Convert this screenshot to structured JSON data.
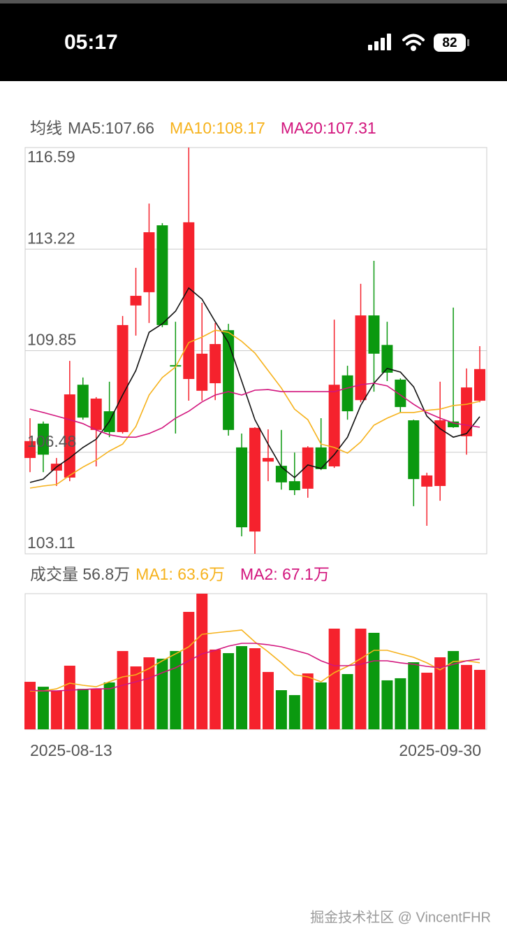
{
  "status_bar": {
    "time": "05:17",
    "battery": "82"
  },
  "chart_data": [
    {
      "type": "candlestick",
      "title": "均线",
      "open": [
        106.29,
        107.43,
        105.87,
        105.64,
        108.72,
        107.22,
        107.84,
        107.15,
        111.35,
        111.79,
        114.01,
        109.37,
        108.91,
        108.52,
        108.77,
        110.53,
        106.64,
        103.85,
        106.17,
        106.03,
        105.52,
        105.27,
        106.64,
        106.01,
        109.03,
        108.21,
        111.02,
        110.04,
        108.89,
        107.54,
        105.34,
        105.36,
        107.5,
        107.01,
        108.19
      ],
      "high": [
        107.61,
        107.5,
        106.29,
        109.51,
        108.96,
        108.31,
        108.82,
        111.0,
        112.6,
        114.73,
        114.08,
        110.81,
        116.59,
        111.44,
        110.77,
        110.74,
        107.1,
        107.31,
        107.24,
        107.22,
        106.47,
        106.68,
        107.61,
        110.88,
        109.35,
        112.07,
        112.83,
        110.81,
        108.93,
        107.56,
        105.8,
        108.82,
        111.28,
        109.26,
        110.0
      ],
      "low": [
        105.82,
        105.82,
        105.36,
        105.52,
        107.56,
        106.01,
        106.98,
        107.1,
        110.35,
        110.77,
        110.63,
        107.1,
        108.19,
        108.19,
        108.21,
        107.03,
        103.69,
        103.11,
        105.52,
        105.24,
        105.06,
        104.97,
        105.89,
        105.96,
        107.56,
        108.14,
        108.49,
        108.84,
        107.8,
        104.69,
        104.04,
        104.87,
        107.29,
        106.4,
        108.14
      ],
      "close": [
        106.85,
        106.4,
        106.1,
        108.4,
        107.63,
        108.26,
        107.15,
        110.7,
        111.67,
        113.78,
        110.7,
        109.33,
        114.11,
        109.75,
        110.07,
        107.22,
        103.99,
        107.29,
        106.29,
        105.48,
        105.22,
        106.64,
        105.92,
        108.72,
        107.84,
        111.02,
        109.75,
        109.12,
        107.98,
        105.59,
        105.71,
        107.54,
        107.31,
        108.63,
        109.24
      ],
      "up_color": "#f5222d",
      "down_color": "#0b990f",
      "series": [
        {
          "name": "MA5:107.66",
          "color": "#111111",
          "values": [
            105.48,
            105.59,
            105.99,
            106.29,
            106.64,
            106.91,
            107.5,
            108.38,
            109.19,
            110.46,
            110.74,
            111.16,
            111.93,
            111.56,
            110.81,
            110.12,
            108.84,
            107.56,
            106.75,
            105.99,
            105.64,
            106.06,
            105.94,
            106.4,
            106.98,
            108.03,
            108.77,
            109.26,
            109.14,
            108.65,
            107.68,
            107.26,
            106.98,
            107.1,
            107.66
          ]
        },
        {
          "name": "MA10:108.17",
          "color": "#f6b21c",
          "values": [
            105.29,
            105.36,
            105.41,
            105.71,
            105.99,
            106.22,
            106.52,
            106.75,
            107.33,
            108.38,
            108.96,
            109.31,
            110.12,
            110.3,
            110.53,
            110.46,
            110.16,
            109.77,
            109.19,
            108.61,
            107.91,
            107.56,
            106.75,
            106.64,
            106.45,
            106.82,
            107.38,
            107.61,
            107.8,
            107.8,
            107.87,
            107.91,
            108.03,
            108.07,
            108.17
          ]
        },
        {
          "name": "MA20:107.31",
          "color": "#d2157d",
          "values": [
            107.91,
            107.8,
            107.68,
            107.56,
            107.43,
            107.22,
            107.06,
            106.98,
            106.98,
            107.1,
            107.29,
            107.61,
            107.84,
            108.15,
            108.38,
            108.49,
            108.38,
            108.54,
            108.56,
            108.49,
            108.49,
            108.49,
            108.49,
            108.49,
            108.61,
            108.72,
            108.77,
            108.68,
            108.38,
            108.07,
            107.8,
            107.61,
            107.45,
            107.38,
            107.31
          ]
        }
      ],
      "ylim": [
        103.11,
        116.59
      ],
      "yticks": [
        116.59,
        113.22,
        109.85,
        106.48,
        103.11
      ],
      "grid": true
    },
    {
      "type": "bar",
      "title": "成交量 56.8万",
      "categories": [
        "2025-08-13",
        null,
        null,
        null,
        null,
        null,
        null,
        null,
        null,
        null,
        null,
        null,
        null,
        null,
        null,
        null,
        null,
        null,
        null,
        null,
        null,
        null,
        null,
        null,
        null,
        null,
        null,
        null,
        null,
        null,
        null,
        null,
        null,
        null,
        "2025-09-30"
      ],
      "values": [
        45.4,
        40.7,
        36.7,
        60.8,
        38.7,
        38.7,
        44.8,
        74.8,
        60.1,
        68.8,
        67.5,
        74.8,
        112.2,
        129.6,
        76.2,
        72.8,
        79.5,
        77.5,
        54.8,
        37.4,
        32.7,
        53.4,
        44.8,
        96.2,
        52.8,
        96.2,
        92.2,
        46.8,
        48.8,
        64.1,
        54.1,
        68.8,
        74.8,
        61.5,
        56.8
      ],
      "up_color": "#f5222d",
      "down_color": "#0b990f",
      "series": [
        {
          "name": "MA1: 63.6万",
          "color": "#f6b21c",
          "values": [
            36.7,
            36.7,
            38.7,
            44.1,
            42.1,
            40.7,
            45.4,
            50.1,
            52.1,
            58.1,
            65.5,
            72.1,
            78.8,
            90.8,
            92.2,
            93.5,
            94.9,
            83.5,
            74.1,
            63.5,
            52.1,
            50.1,
            45.4,
            54.1,
            60.1,
            67.5,
            75.5,
            75.5,
            72.1,
            68.8,
            63.5,
            56.8,
            64.8,
            65.5,
            63.6
          ]
        },
        {
          "name": "MA2: 67.1万",
          "color": "#d2157d",
          "values": [
            37.4,
            36.7,
            36.7,
            37.4,
            38.1,
            38.7,
            38.7,
            42.1,
            45.4,
            48.8,
            54.1,
            58.8,
            65.5,
            72.1,
            75.5,
            79.5,
            82.2,
            82.2,
            80.8,
            78.8,
            75.5,
            72.1,
            65.5,
            60.8,
            60.8,
            62.1,
            65.5,
            65.5,
            63.5,
            62.1,
            60.1,
            58.8,
            62.1,
            65.5,
            67.1
          ]
        }
      ],
      "ylim": [
        0,
        129.6
      ]
    }
  ],
  "watermark": "掘金技术社区 @ VincentFHR"
}
